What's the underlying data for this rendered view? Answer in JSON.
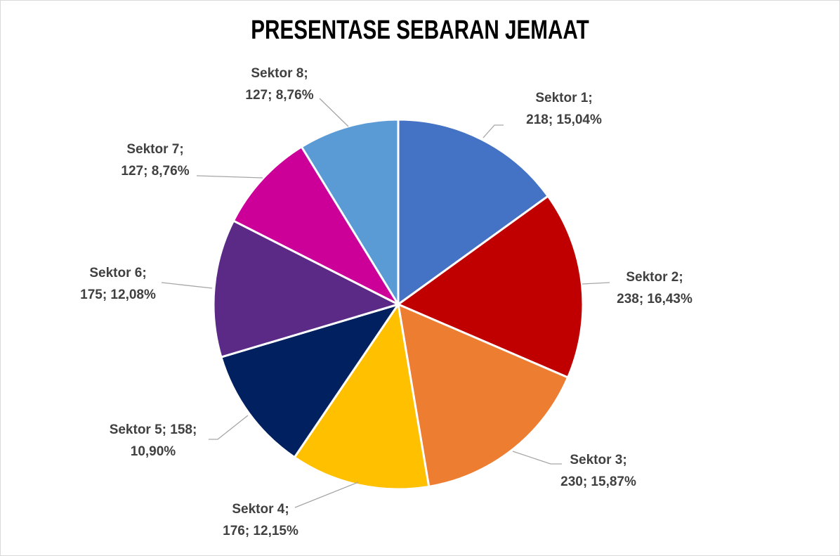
{
  "chart_data": {
    "type": "pie",
    "title": "PRESENTASE SEBARAN JEMAAT",
    "slices": [
      {
        "name": "Sektor 1",
        "value": 218,
        "percent": "15,04%",
        "color": "#4472C4",
        "label_lines": [
          "Sektor 1;",
          "218; 15,04%"
        ]
      },
      {
        "name": "Sektor 2",
        "value": 238,
        "percent": "16,43%",
        "color": "#C00000",
        "label_lines": [
          "Sektor 2;",
          "238; 16,43%"
        ]
      },
      {
        "name": "Sektor 3",
        "value": 230,
        "percent": "15,87%",
        "color": "#ED7D31",
        "label_lines": [
          "Sektor 3;",
          "230; 15,87%"
        ]
      },
      {
        "name": "Sektor 4",
        "value": 176,
        "percent": "12,15%",
        "color": "#FFC000",
        "label_lines": [
          "Sektor 4;",
          "176; 12,15%"
        ]
      },
      {
        "name": "Sektor 5",
        "value": 158,
        "percent": "10,90%",
        "color": "#002060",
        "label_lines": [
          "Sektor 5; 158;",
          "10,90%"
        ]
      },
      {
        "name": "Sektor 6",
        "value": 175,
        "percent": "12,08%",
        "color": "#5B2A86",
        "label_lines": [
          "Sektor 6;",
          "175; 12,08%"
        ]
      },
      {
        "name": "Sektor 7",
        "value": 127,
        "percent": "8,76%",
        "color": "#CC0099",
        "label_lines": [
          "Sektor 7;",
          "127; 8,76%"
        ]
      },
      {
        "name": "Sektor 8",
        "value": 127,
        "percent": "8,76%",
        "color": "#5B9BD5",
        "label_lines": [
          "Sektor 8;",
          "127; 8,76%"
        ]
      }
    ]
  }
}
